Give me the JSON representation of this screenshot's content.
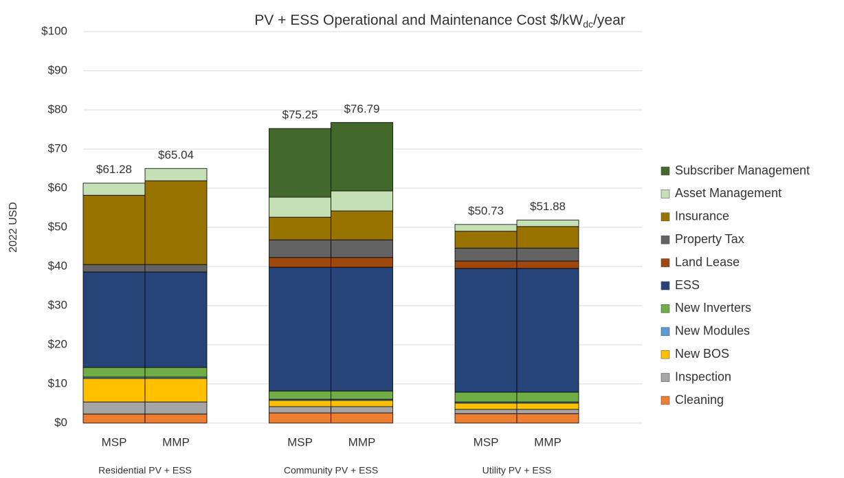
{
  "chart_data": {
    "type": "stacked_bar",
    "title": "PV + ESS Operational and Maintenance Cost $/kW",
    "title_subscript": "dc",
    "title_suffix": "/year",
    "ylabel": "2022 USD",
    "categories": [
      "MSP",
      "MMP",
      "MSP",
      "MMP",
      "MSP",
      "MMP"
    ],
    "groups": [
      "Residential PV + ESS",
      "Community PV + ESS",
      "Utility PV + ESS"
    ],
    "totals": [
      61.28,
      65.04,
      75.25,
      76.79,
      50.73,
      51.88
    ],
    "total_labels": [
      "$61.28",
      "$65.04",
      "$75.25",
      "$76.79",
      "$50.73",
      "$51.88"
    ],
    "series": [
      {
        "name": "Cleaning",
        "color": "#ed7d31",
        "values": [
          2.3,
          2.3,
          2.6,
          2.6,
          2.4,
          2.4
        ]
      },
      {
        "name": "Inspection",
        "color": "#a5a5a5",
        "values": [
          3.1,
          3.1,
          1.6,
          1.6,
          1.1,
          1.1
        ]
      },
      {
        "name": "New BOS",
        "color": "#ffc000",
        "values": [
          6.0,
          6.0,
          1.6,
          1.6,
          1.6,
          1.6
        ]
      },
      {
        "name": "New Modules",
        "color": "#5b9bd5",
        "values": [
          0.35,
          0.35,
          0.3,
          0.3,
          0.3,
          0.3
        ]
      },
      {
        "name": "New Inverters",
        "color": "#70ad47",
        "values": [
          2.45,
          2.45,
          2.1,
          2.1,
          2.5,
          2.5
        ]
      },
      {
        "name": "ESS",
        "color": "#264478",
        "values": [
          24.4,
          24.4,
          31.6,
          31.6,
          31.6,
          31.6
        ]
      },
      {
        "name": "Land Lease",
        "color": "#9e480e",
        "values": [
          0,
          0,
          2.5,
          2.5,
          1.9,
          1.9
        ]
      },
      {
        "name": "Property Tax",
        "color": "#636363",
        "values": [
          1.9,
          1.9,
          4.5,
          4.5,
          3.3,
          3.3
        ]
      },
      {
        "name": "Insurance",
        "color": "#997300",
        "values": [
          17.7,
          21.4,
          5.8,
          7.4,
          4.3,
          5.5
        ]
      },
      {
        "name": "Asset Management",
        "color": "#c5e0b4",
        "values": [
          3.08,
          3.14,
          5.1,
          5.1,
          1.73,
          1.68
        ]
      },
      {
        "name": "Subscriber Management",
        "color": "#43682b",
        "values": [
          0,
          0,
          17.55,
          17.49,
          0,
          0
        ]
      }
    ],
    "ylim": [
      0,
      100
    ],
    "yticks": [
      {
        "value": 0,
        "label": "$0"
      },
      {
        "value": 10,
        "label": "$10"
      },
      {
        "value": 20,
        "label": "$20"
      },
      {
        "value": 30,
        "label": "$30"
      },
      {
        "value": 40,
        "label": "$40"
      },
      {
        "value": 50,
        "label": "$50"
      },
      {
        "value": 60,
        "label": "$60"
      },
      {
        "value": 70,
        "label": "$70"
      },
      {
        "value": 80,
        "label": "$80"
      },
      {
        "value": 90,
        "label": "$90"
      },
      {
        "value": 100,
        "label": "$100"
      }
    ],
    "grid": true,
    "legend": "right"
  }
}
